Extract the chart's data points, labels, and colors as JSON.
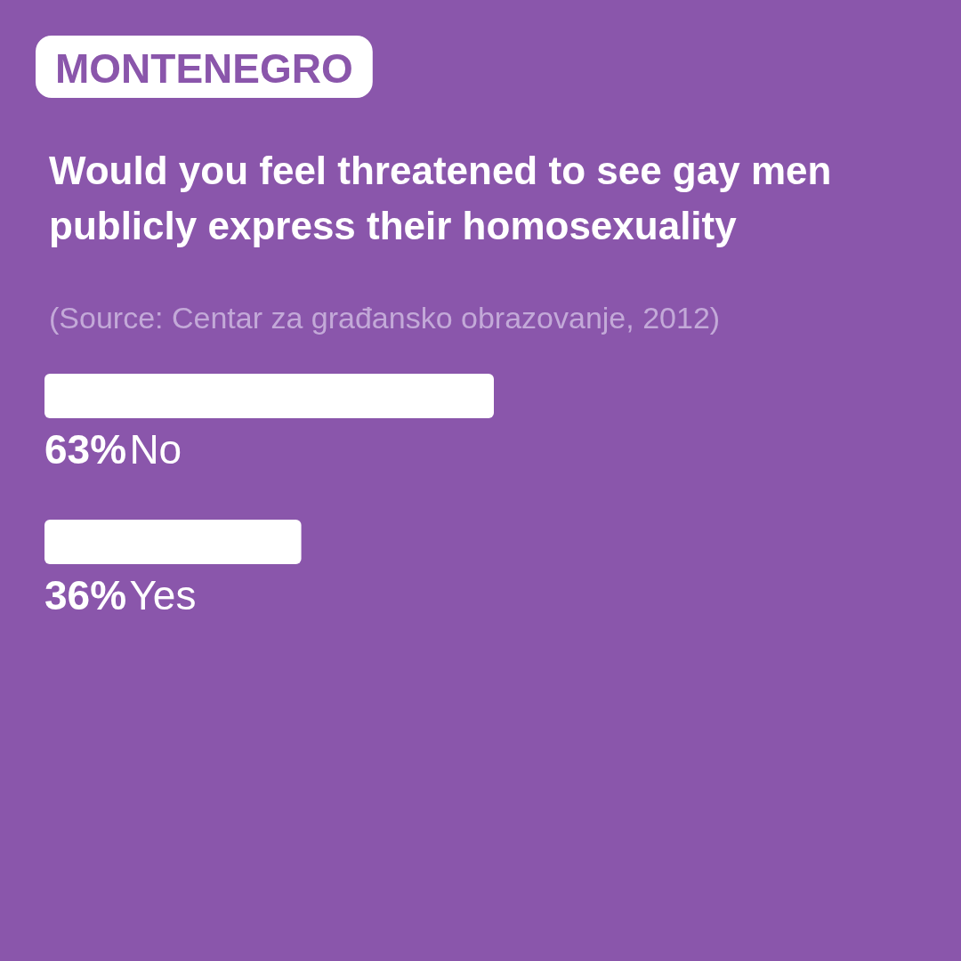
{
  "chart_data": {
    "type": "bar",
    "orientation": "horizontal",
    "title": "MONTENEGRO",
    "subtitle": "Would you feel threatened to see gay men publicly express their homosexuality",
    "annotations": [
      "(Source: Centar za građansko obrazovanje, 2012)"
    ],
    "categories": [
      "No",
      "Yes"
    ],
    "values": [
      63,
      36
    ],
    "value_labels": [
      "63%",
      "36%"
    ],
    "color": "#ffffff",
    "tick_labels": false
  }
}
